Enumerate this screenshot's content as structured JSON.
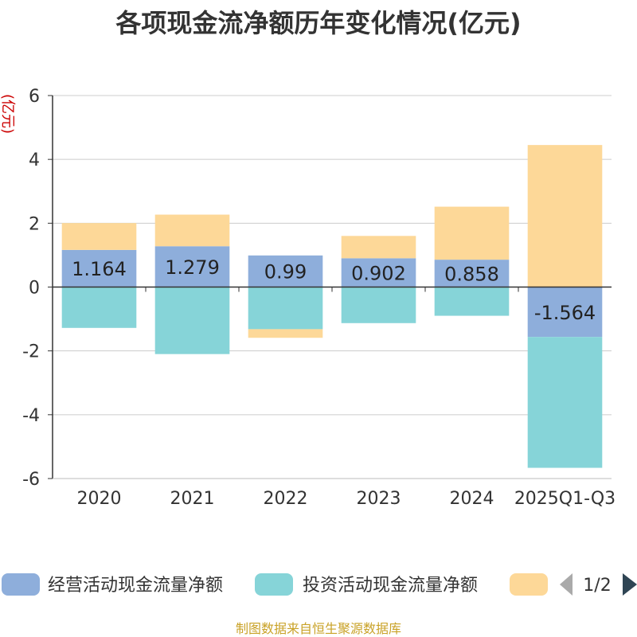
{
  "title": "各项现金流净额历年变化情况(亿元)",
  "source_note": "制图数据来自恒生聚源数据库",
  "chart_data": {
    "type": "stacked-bar",
    "title": "各项现金流净额历年变化情况(亿元)",
    "ylabel": "(亿元)",
    "xlabel": "",
    "ylim": [
      -6,
      6
    ],
    "yticks": [
      6,
      4,
      2,
      0,
      -2,
      -4,
      -6
    ],
    "categories": [
      "2020",
      "2021",
      "2022",
      "2023",
      "2024",
      "2025Q1-Q3"
    ],
    "series": [
      {
        "name": "经营活动现金流量净额",
        "color": "#8eaedb",
        "values": [
          1.164,
          1.279,
          0.99,
          0.902,
          0.858,
          -1.564
        ],
        "show_labels": true
      },
      {
        "name": "投资活动现金流量净额",
        "color": "#86d4d8",
        "values": [
          -1.28,
          -2.1,
          -1.32,
          -1.13,
          -0.9,
          -4.1
        ],
        "show_labels": false
      },
      {
        "name": "",
        "color": "#fdd898",
        "values": [
          0.84,
          0.99,
          -0.27,
          0.7,
          1.66,
          4.45
        ],
        "show_labels": false
      }
    ],
    "legend": {
      "position": "bottom",
      "page": "1/2"
    }
  }
}
